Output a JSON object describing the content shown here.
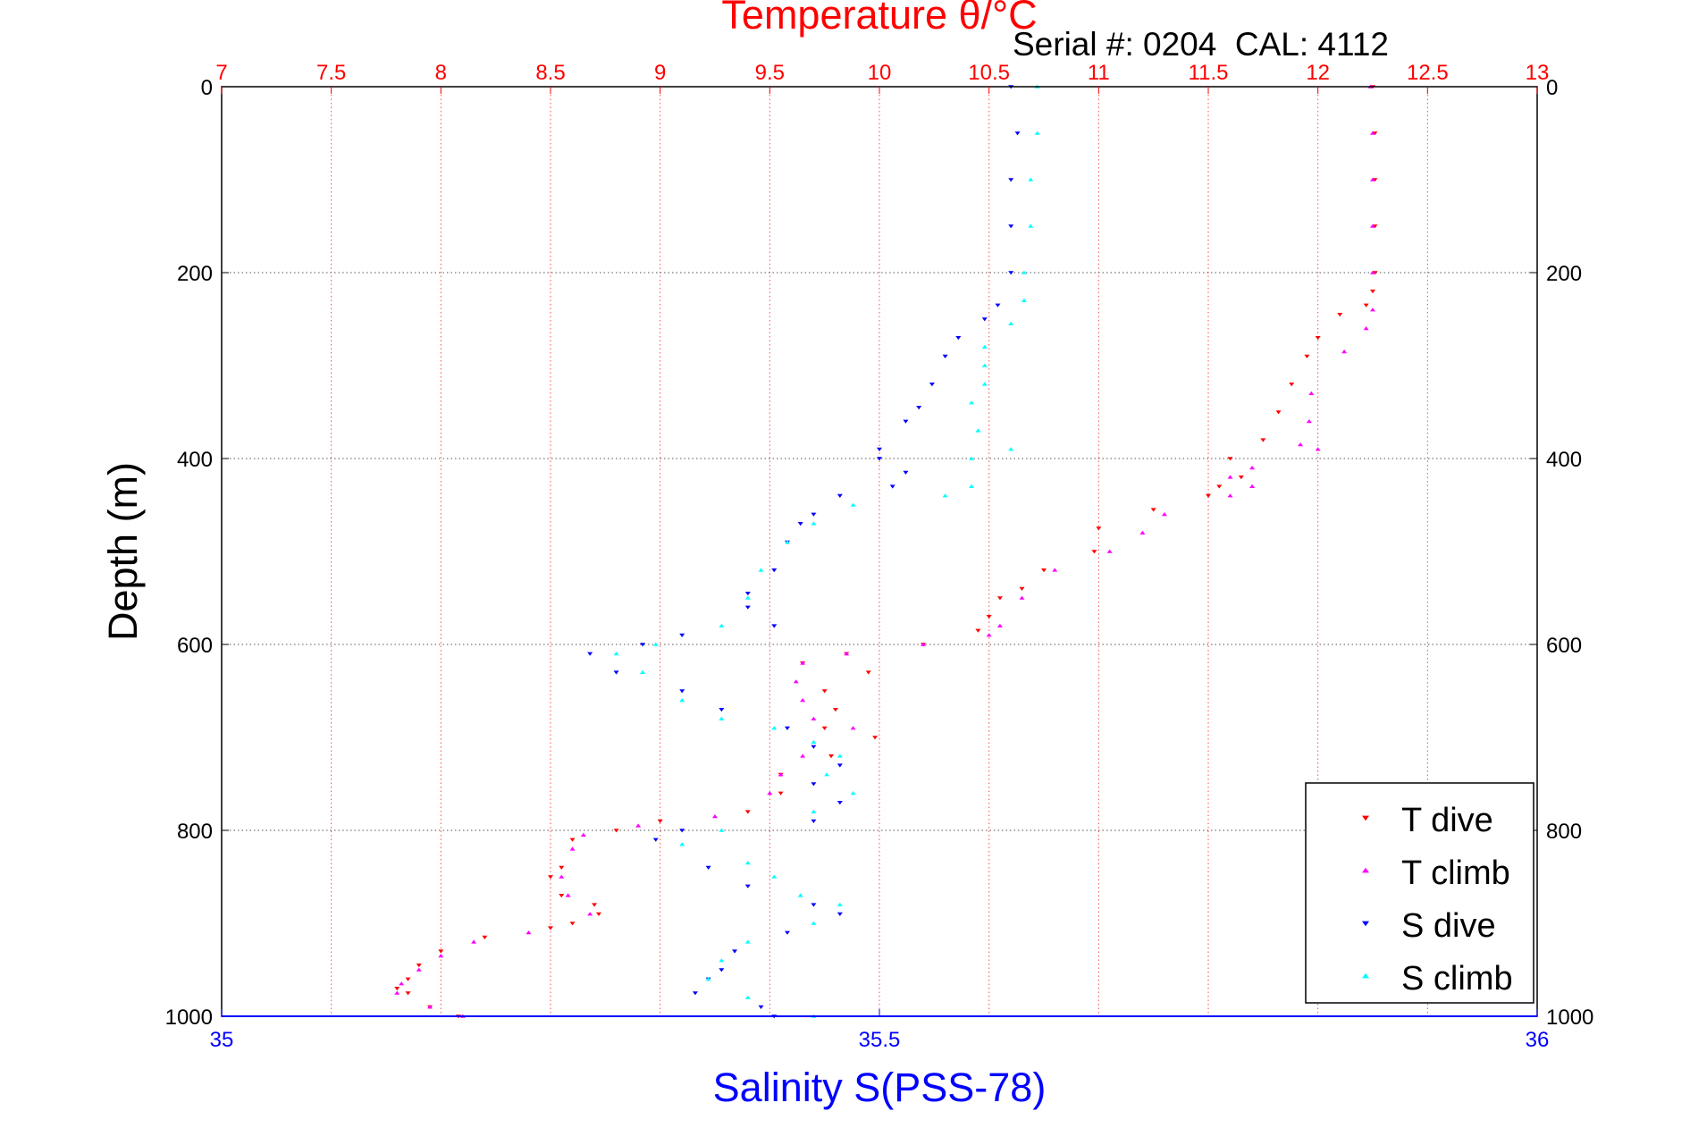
{
  "chart_data": {
    "type": "scatter",
    "title": "Temperature θ/°C",
    "subtitle": "Serial #: 0204  CAL: 4112",
    "ylabel": "Depth (m)",
    "top_xlabel": "Temperature θ/°C",
    "bottom_xlabel": "Salinity S(PSS-78)",
    "ylim": [
      0,
      1000
    ],
    "y_reversed": true,
    "y_ticks": [
      "0",
      "200",
      "400",
      "600",
      "800",
      "1000"
    ],
    "temperature_axis": {
      "lim": [
        7,
        13
      ],
      "ticks": [
        "7",
        "7.5",
        "8",
        "8.5",
        "9",
        "9.5",
        "10",
        "10.5",
        "11",
        "11.5",
        "12",
        "12.5",
        "13"
      ],
      "color": "#ff0000"
    },
    "salinity_axis": {
      "lim": [
        35,
        36
      ],
      "ticks": [
        "35",
        "35.5",
        "36"
      ],
      "color": "#0000ff"
    },
    "grid": true,
    "legend_position": "bottom-right",
    "series": [
      {
        "name": "T dive",
        "axis": "temperature",
        "color": "#ff0000",
        "marker": "triangle-down",
        "points": [
          [
            12.25,
            0
          ],
          [
            12.26,
            50
          ],
          [
            12.26,
            100
          ],
          [
            12.26,
            150
          ],
          [
            12.26,
            200
          ],
          [
            12.25,
            220
          ],
          [
            12.22,
            235
          ],
          [
            12.1,
            245
          ],
          [
            12.0,
            270
          ],
          [
            11.95,
            290
          ],
          [
            11.88,
            320
          ],
          [
            11.82,
            350
          ],
          [
            11.75,
            380
          ],
          [
            11.6,
            400
          ],
          [
            11.65,
            420
          ],
          [
            11.55,
            430
          ],
          [
            11.5,
            440
          ],
          [
            11.25,
            455
          ],
          [
            11.0,
            475
          ],
          [
            10.98,
            500
          ],
          [
            10.75,
            520
          ],
          [
            10.65,
            540
          ],
          [
            10.55,
            550
          ],
          [
            10.5,
            570
          ],
          [
            10.45,
            585
          ],
          [
            10.2,
            600
          ],
          [
            9.85,
            610
          ],
          [
            9.65,
            620
          ],
          [
            9.95,
            630
          ],
          [
            9.75,
            650
          ],
          [
            9.8,
            670
          ],
          [
            9.75,
            690
          ],
          [
            9.98,
            700
          ],
          [
            9.78,
            720
          ],
          [
            9.55,
            740
          ],
          [
            9.55,
            760
          ],
          [
            9.4,
            780
          ],
          [
            9.0,
            790
          ],
          [
            8.8,
            800
          ],
          [
            8.6,
            810
          ],
          [
            8.55,
            840
          ],
          [
            8.5,
            850
          ],
          [
            8.55,
            870
          ],
          [
            8.7,
            880
          ],
          [
            8.72,
            890
          ],
          [
            8.6,
            900
          ],
          [
            8.5,
            905
          ],
          [
            8.2,
            915
          ],
          [
            8.0,
            930
          ],
          [
            7.9,
            945
          ],
          [
            7.85,
            960
          ],
          [
            7.8,
            970
          ],
          [
            7.85,
            975
          ],
          [
            7.95,
            990
          ],
          [
            8.08,
            1000
          ]
        ]
      },
      {
        "name": "T climb",
        "axis": "temperature",
        "color": "#ff00ff",
        "marker": "triangle-up",
        "points": [
          [
            12.24,
            0
          ],
          [
            12.25,
            50
          ],
          [
            12.25,
            100
          ],
          [
            12.25,
            150
          ],
          [
            12.25,
            200
          ],
          [
            12.25,
            240
          ],
          [
            12.22,
            260
          ],
          [
            12.12,
            285
          ],
          [
            11.97,
            330
          ],
          [
            11.96,
            360
          ],
          [
            11.92,
            385
          ],
          [
            12.0,
            390
          ],
          [
            11.7,
            410
          ],
          [
            11.6,
            420
          ],
          [
            11.7,
            430
          ],
          [
            11.6,
            440
          ],
          [
            11.3,
            460
          ],
          [
            11.2,
            480
          ],
          [
            11.05,
            500
          ],
          [
            10.8,
            520
          ],
          [
            10.65,
            550
          ],
          [
            10.55,
            580
          ],
          [
            10.5,
            590
          ],
          [
            10.2,
            600
          ],
          [
            9.85,
            610
          ],
          [
            9.65,
            620
          ],
          [
            9.62,
            640
          ],
          [
            9.65,
            660
          ],
          [
            9.7,
            680
          ],
          [
            9.88,
            690
          ],
          [
            9.65,
            720
          ],
          [
            9.55,
            740
          ],
          [
            9.5,
            760
          ],
          [
            9.25,
            785
          ],
          [
            8.9,
            795
          ],
          [
            8.65,
            805
          ],
          [
            8.6,
            820
          ],
          [
            8.55,
            850
          ],
          [
            8.58,
            870
          ],
          [
            8.68,
            890
          ],
          [
            8.4,
            910
          ],
          [
            8.15,
            920
          ],
          [
            8.0,
            935
          ],
          [
            7.9,
            950
          ],
          [
            7.82,
            965
          ],
          [
            7.8,
            975
          ],
          [
            7.95,
            990
          ],
          [
            8.1,
            1000
          ]
        ]
      },
      {
        "name": "S dive",
        "axis": "salinity",
        "color": "#0000ff",
        "marker": "triangle-down",
        "points": [
          [
            35.6,
            0
          ],
          [
            35.605,
            50
          ],
          [
            35.6,
            100
          ],
          [
            35.6,
            150
          ],
          [
            35.6,
            200
          ],
          [
            35.59,
            235
          ],
          [
            35.58,
            250
          ],
          [
            35.56,
            270
          ],
          [
            35.55,
            290
          ],
          [
            35.54,
            320
          ],
          [
            35.53,
            345
          ],
          [
            35.52,
            360
          ],
          [
            35.5,
            390
          ],
          [
            35.5,
            400
          ],
          [
            35.52,
            415
          ],
          [
            35.51,
            430
          ],
          [
            35.47,
            440
          ],
          [
            35.45,
            460
          ],
          [
            35.44,
            470
          ],
          [
            35.43,
            490
          ],
          [
            35.42,
            520
          ],
          [
            35.4,
            545
          ],
          [
            35.4,
            560
          ],
          [
            35.42,
            580
          ],
          [
            35.35,
            590
          ],
          [
            35.32,
            600
          ],
          [
            35.28,
            610
          ],
          [
            35.3,
            630
          ],
          [
            35.35,
            650
          ],
          [
            35.38,
            670
          ],
          [
            35.43,
            690
          ],
          [
            35.45,
            710
          ],
          [
            35.47,
            730
          ],
          [
            35.45,
            750
          ],
          [
            35.47,
            770
          ],
          [
            35.45,
            790
          ],
          [
            35.35,
            800
          ],
          [
            35.33,
            810
          ],
          [
            35.37,
            840
          ],
          [
            35.4,
            860
          ],
          [
            35.45,
            880
          ],
          [
            35.47,
            890
          ],
          [
            35.43,
            910
          ],
          [
            35.39,
            930
          ],
          [
            35.38,
            950
          ],
          [
            35.37,
            960
          ],
          [
            35.36,
            975
          ],
          [
            35.41,
            990
          ],
          [
            35.42,
            1000
          ]
        ]
      },
      {
        "name": "S climb",
        "axis": "salinity",
        "color": "#00ffff",
        "marker": "triangle-up",
        "points": [
          [
            35.62,
            0
          ],
          [
            35.62,
            50
          ],
          [
            35.615,
            100
          ],
          [
            35.615,
            150
          ],
          [
            35.61,
            200
          ],
          [
            35.61,
            230
          ],
          [
            35.6,
            255
          ],
          [
            35.58,
            280
          ],
          [
            35.58,
            300
          ],
          [
            35.58,
            320
          ],
          [
            35.57,
            340
          ],
          [
            35.575,
            370
          ],
          [
            35.6,
            390
          ],
          [
            35.57,
            400
          ],
          [
            35.57,
            430
          ],
          [
            35.55,
            440
          ],
          [
            35.48,
            450
          ],
          [
            35.45,
            470
          ],
          [
            35.43,
            490
          ],
          [
            35.41,
            520
          ],
          [
            35.4,
            550
          ],
          [
            35.38,
            580
          ],
          [
            35.33,
            600
          ],
          [
            35.3,
            610
          ],
          [
            35.32,
            630
          ],
          [
            35.35,
            660
          ],
          [
            35.38,
            680
          ],
          [
            35.42,
            690
          ],
          [
            35.45,
            705
          ],
          [
            35.47,
            720
          ],
          [
            35.46,
            740
          ],
          [
            35.48,
            760
          ],
          [
            35.45,
            780
          ],
          [
            35.38,
            800
          ],
          [
            35.35,
            815
          ],
          [
            35.4,
            835
          ],
          [
            35.42,
            850
          ],
          [
            35.44,
            870
          ],
          [
            35.47,
            880
          ],
          [
            35.45,
            900
          ],
          [
            35.4,
            920
          ],
          [
            35.38,
            940
          ],
          [
            35.37,
            960
          ],
          [
            35.4,
            980
          ],
          [
            35.45,
            1000
          ]
        ]
      }
    ]
  }
}
